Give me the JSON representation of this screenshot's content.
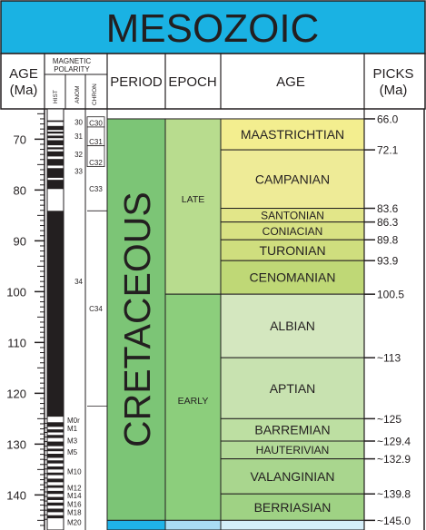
{
  "chart_data": {
    "type": "table",
    "title": "MESOZOIC",
    "ylabel": "AGE (Ma)",
    "ylim": [
      64,
      146
    ],
    "y_ticks": [
      70,
      80,
      90,
      100,
      110,
      120,
      130,
      140
    ],
    "headers": {
      "age_l1": "AGE",
      "age_l2": "(Ma)",
      "mag_l1": "MAGNETIC",
      "mag_l2": "POLARITY",
      "hist": "HIST",
      "anom": "ANOM",
      "chron": "CHRON",
      "period": "PERIOD",
      "epoch": "EPOCH",
      "age": "AGE",
      "picks_l1": "PICKS",
      "picks_l2": "(Ma)"
    },
    "period": {
      "name": "CRETACEOUS",
      "top": 66.0,
      "base": 145.0,
      "color": "#7cc576"
    },
    "epochs": [
      {
        "name": "LATE",
        "top": 66.0,
        "base": 100.5,
        "color": "#b8dc8e"
      },
      {
        "name": "EARLY",
        "top": 100.5,
        "base": 145.0,
        "color": "#8cce7c"
      }
    ],
    "stages": [
      {
        "name": "MAASTRICHTIAN",
        "top": 66.0,
        "base": 72.1,
        "color": "#f3ee8f"
      },
      {
        "name": "CAMPANIAN",
        "top": 72.1,
        "base": 83.6,
        "color": "#eeeb97"
      },
      {
        "name": "SANTONIAN",
        "top": 83.6,
        "base": 86.3,
        "color": "#e2e689"
      },
      {
        "name": "CONIACIAN",
        "top": 86.3,
        "base": 89.8,
        "color": "#d8e283"
      },
      {
        "name": "TURONIAN",
        "top": 89.8,
        "base": 93.9,
        "color": "#cfde7e"
      },
      {
        "name": "CENOMANIAN",
        "top": 93.9,
        "base": 100.5,
        "color": "#bfd876"
      },
      {
        "name": "ALBIAN",
        "top": 100.5,
        "base": 113.0,
        "color": "#d4e7bf"
      },
      {
        "name": "APTIAN",
        "top": 113.0,
        "base": 125.0,
        "color": "#c8e2b0"
      },
      {
        "name": "BARREMIAN",
        "top": 125.0,
        "base": 129.4,
        "color": "#bddfa2"
      },
      {
        "name": "HAUTERIVIAN",
        "top": 129.4,
        "base": 132.9,
        "color": "#b3da98"
      },
      {
        "name": "VALANGINIAN",
        "top": 132.9,
        "base": 139.8,
        "color": "#a9d68e"
      },
      {
        "name": "BERRIASIAN",
        "top": 139.8,
        "base": 145.0,
        "color": "#9fd284"
      }
    ],
    "picks": [
      {
        "label": "66.0",
        "age": 66.0
      },
      {
        "label": "72.1",
        "age": 72.1
      },
      {
        "label": "83.6",
        "age": 83.6
      },
      {
        "label": "86.3",
        "age": 86.3
      },
      {
        "label": "89.8",
        "age": 89.8
      },
      {
        "label": "93.9",
        "age": 93.9
      },
      {
        "label": "100.5",
        "age": 100.5
      },
      {
        "label": "~113",
        "age": 113.0
      },
      {
        "label": "~125",
        "age": 125.0
      },
      {
        "label": "~129.4",
        "age": 129.4
      },
      {
        "label": "~132.9",
        "age": 132.9
      },
      {
        "label": "~139.8",
        "age": 139.8
      },
      {
        "label": "~145.0",
        "age": 145.0
      }
    ],
    "polarity_normal": [
      [
        66.3,
        66.6
      ],
      [
        67.4,
        68.2
      ],
      [
        68.5,
        68.9
      ],
      [
        69.3,
        69.8
      ],
      [
        70.2,
        71.2
      ],
      [
        71.6,
        72.0
      ],
      [
        72.4,
        73.4
      ],
      [
        73.9,
        75.2
      ],
      [
        75.7,
        77.6
      ],
      [
        78.0,
        79.8
      ],
      [
        84.1,
        124.6
      ],
      [
        125.7,
        126.6
      ],
      [
        127.1,
        127.7
      ],
      [
        128.2,
        128.8
      ],
      [
        129.5,
        130.4
      ],
      [
        130.9,
        131.4
      ],
      [
        131.9,
        132.7
      ],
      [
        133.2,
        133.8
      ],
      [
        134.4,
        135.0
      ],
      [
        135.6,
        136.1
      ],
      [
        136.8,
        137.5
      ],
      [
        138.1,
        138.6
      ],
      [
        139.2,
        139.8
      ],
      [
        140.4,
        141.0
      ],
      [
        141.5,
        142.1
      ],
      [
        142.7,
        143.4
      ],
      [
        144.0,
        144.6
      ]
    ],
    "anomalies": [
      {
        "label": "30",
        "age": 66.6
      },
      {
        "label": "31",
        "age": 69.4
      },
      {
        "label": "32",
        "age": 73.0
      },
      {
        "label": "33",
        "age": 76.3
      },
      {
        "label": "34",
        "age": 98.0
      },
      {
        "label": "M0r",
        "age": 125.3
      },
      {
        "label": "M1",
        "age": 126.9
      },
      {
        "label": "M3",
        "age": 129.3
      },
      {
        "label": "M5",
        "age": 131.5
      },
      {
        "label": "M10",
        "age": 135.4
      },
      {
        "label": "M12",
        "age": 138.6
      },
      {
        "label": "M14",
        "age": 140.1
      },
      {
        "label": "M16",
        "age": 141.8
      },
      {
        "label": "M18",
        "age": 143.4
      },
      {
        "label": "M20",
        "age": 145.4
      }
    ],
    "chrons": [
      {
        "label": "C30",
        "top": 65.6,
        "base": 67.6,
        "boxed": true
      },
      {
        "label": "C31",
        "top": 67.6,
        "base": 71.3,
        "boxed": true
      },
      {
        "label": "C32",
        "top": 71.3,
        "base": 75.4,
        "boxed": true
      },
      {
        "label": "C33",
        "top": 75.4,
        "base": 84.1,
        "boxed": false
      },
      {
        "label": "C34",
        "top": 84.1,
        "base": 122.5,
        "boxed": false
      }
    ],
    "next_period_color": "#1fb3e8",
    "next_epoch_color": "#aadcf3",
    "next_stage_color": "#d4eef9"
  }
}
